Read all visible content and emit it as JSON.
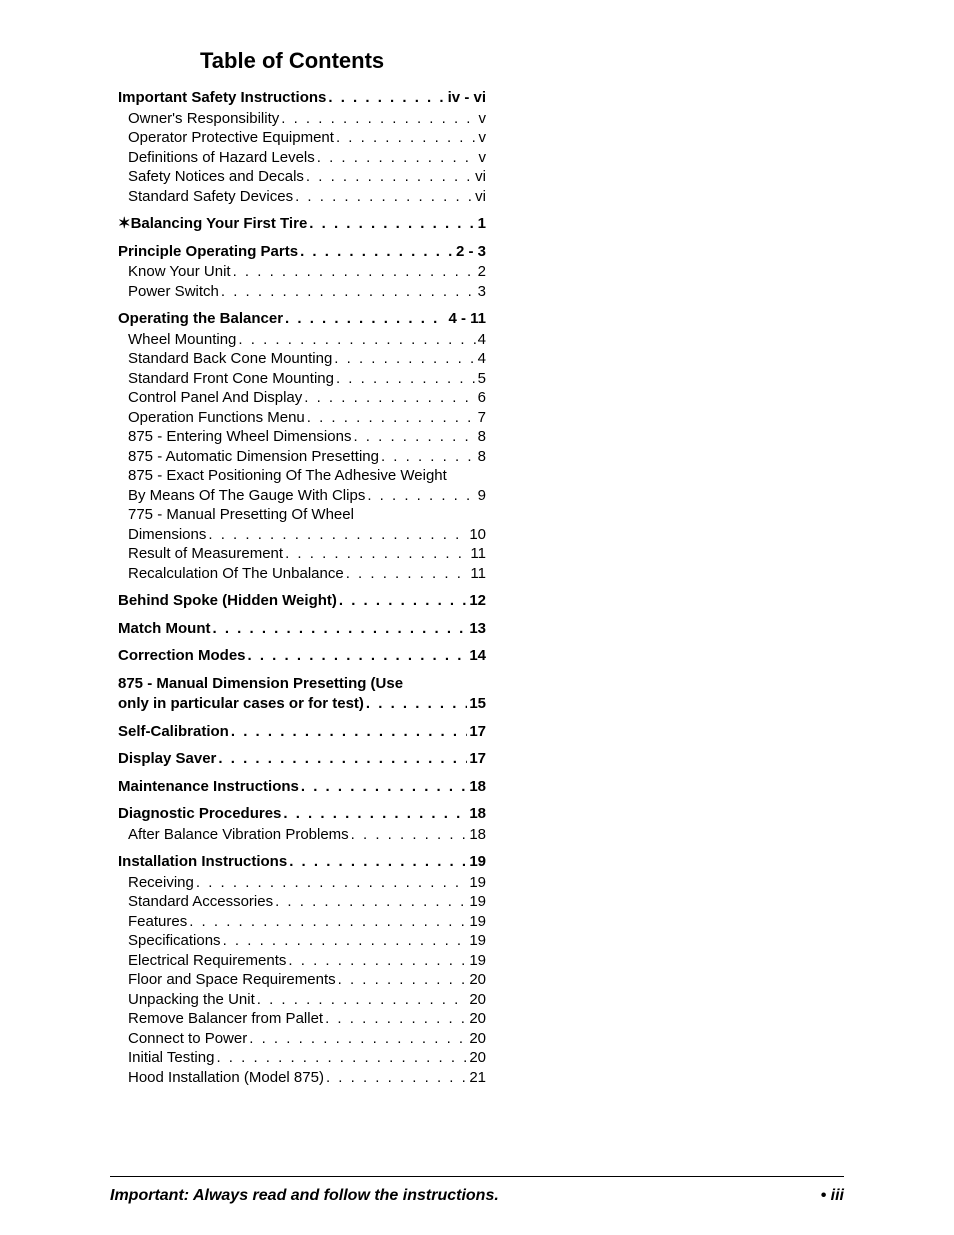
{
  "title": "Table of Contents",
  "footer": {
    "left": "Important: Always read and follow the instructions.",
    "right": "• iii"
  },
  "sections": [
    {
      "heading": {
        "label": "Important Safety Instructions",
        "page": "iv - vi"
      },
      "items": [
        {
          "label": "Owner's Responsibility",
          "page": "v"
        },
        {
          "label": "Operator Protective Equipment",
          "page": "v"
        },
        {
          "label": "Definitions of Hazard Levels",
          "page": "v"
        },
        {
          "label": "Safety Notices and Decals",
          "page": "vi"
        },
        {
          "label": "Standard Safety Devices",
          "page": "vi"
        }
      ]
    },
    {
      "heading": {
        "label": "✶Balancing Your First Tire",
        "page": "1"
      },
      "items": []
    },
    {
      "heading": {
        "label": "Principle Operating Parts",
        "page": "2 - 3"
      },
      "items": [
        {
          "label": "Know Your Unit",
          "page": "2"
        },
        {
          "label": "Power Switch",
          "page": "3"
        }
      ]
    },
    {
      "heading": {
        "label": "Operating the Balancer",
        "page": "4 - 11"
      },
      "items": [
        {
          "label": "Wheel Mounting",
          "page": "4"
        },
        {
          "label": "Standard Back Cone Mounting",
          "page": "4"
        },
        {
          "label": "Standard Front Cone Mounting",
          "page": "5"
        },
        {
          "label": "Control Panel And Display",
          "page": "6"
        },
        {
          "label": "Operation Functions Menu",
          "page": "7"
        },
        {
          "label": "875 - Entering Wheel Dimensions",
          "page": "8"
        },
        {
          "label": "875 - Automatic Dimension Presetting",
          "page": "8"
        },
        {
          "wrap": "875 - Exact Positioning Of The Adhesive Weight"
        },
        {
          "label": "By Means Of The Gauge With Clips",
          "page": "9"
        },
        {
          "wrap": "775 - Manual Presetting Of Wheel"
        },
        {
          "label": "Dimensions",
          "page": "10"
        },
        {
          "label": "Result of Measurement",
          "page": "11"
        },
        {
          "label": "Recalculation Of The Unbalance",
          "page": "11"
        }
      ]
    },
    {
      "heading": {
        "label": "Behind Spoke (Hidden Weight)",
        "page": "12"
      },
      "items": []
    },
    {
      "heading": {
        "label": "Match Mount",
        "page": "13"
      },
      "items": []
    },
    {
      "heading": {
        "label": "Correction Modes",
        "page": "14"
      },
      "items": []
    },
    {
      "heading": {
        "wrap": "875 - Manual Dimension Presetting (Use",
        "label": "only in particular cases or for test)",
        "page": "15"
      },
      "items": []
    },
    {
      "heading": {
        "label": "Self-Calibration",
        "page": "17"
      },
      "items": []
    },
    {
      "heading": {
        "label": "Display Saver",
        "page": "17"
      },
      "items": []
    },
    {
      "heading": {
        "label": "Maintenance Instructions",
        "page": "18"
      },
      "items": []
    },
    {
      "heading": {
        "label": "Diagnostic Procedures",
        "page": "18"
      },
      "items": [
        {
          "label": "After Balance Vibration Problems",
          "page": "18"
        }
      ]
    },
    {
      "heading": {
        "label": "Installation Instructions",
        "page": "19"
      },
      "items": [
        {
          "label": "Receiving",
          "page": "19"
        },
        {
          "label": "Standard Accessories",
          "page": "19"
        },
        {
          "label": "Features",
          "page": "19"
        },
        {
          "label": "Specifications",
          "page": "19"
        },
        {
          "label": "Electrical Requirements",
          "page": "19"
        },
        {
          "label": "Floor and Space Requirements",
          "page": "20"
        },
        {
          "label": "Unpacking the Unit",
          "page": "20"
        },
        {
          "label": "Remove Balancer from Pallet",
          "page": "20"
        },
        {
          "label": "Connect to Power",
          "page": "20"
        },
        {
          "label": "Initial Testing",
          "page": "20"
        },
        {
          "label": "Hood Installation (Model 875)",
          "page": "21"
        }
      ]
    }
  ]
}
